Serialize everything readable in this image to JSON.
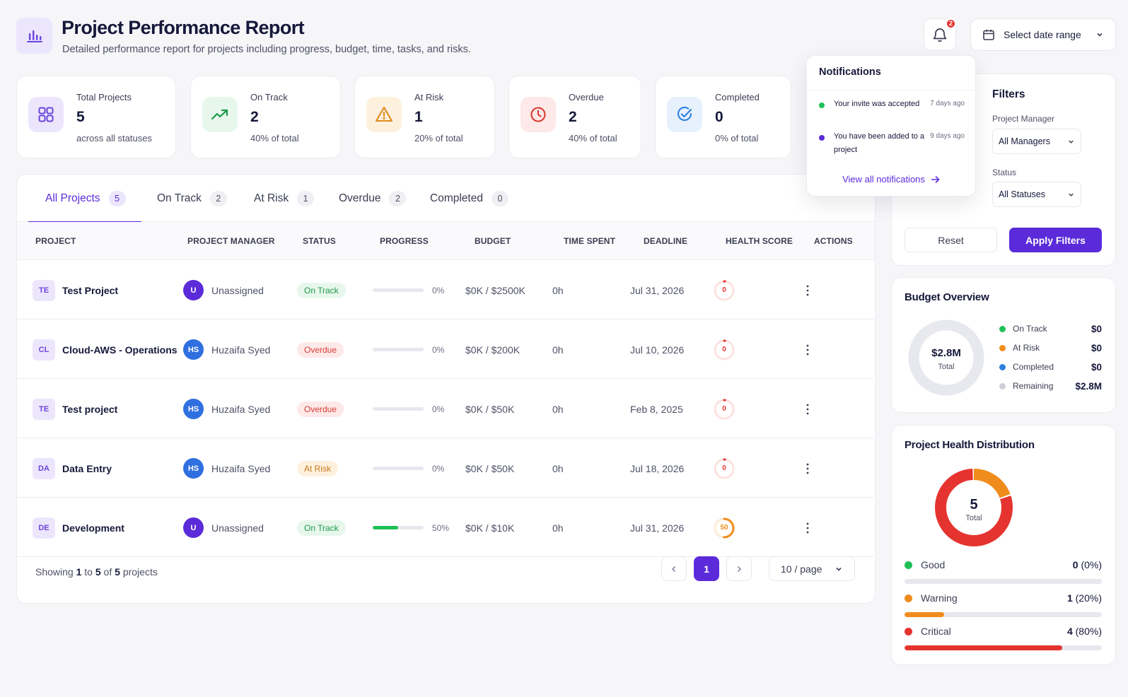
{
  "header": {
    "title": "Project Performance Report",
    "subtitle": "Detailed performance report for projects including progress, budget, time, tasks, and risks.",
    "notification_count": "2",
    "date_range_label": "Select date range"
  },
  "stats": [
    {
      "label": "Total Projects",
      "value": "5",
      "sub": "across all statuses",
      "icon": "grid-icon",
      "color": "#6b45d9"
    },
    {
      "label": "On Track",
      "value": "2",
      "sub": "40% of total",
      "icon": "trending-up-icon",
      "color": "#1f9a4a"
    },
    {
      "label": "At Risk",
      "value": "1",
      "sub": "20% of total",
      "icon": "warning-icon",
      "color": "#e08a1e"
    },
    {
      "label": "Overdue",
      "value": "2",
      "sub": "40% of total",
      "icon": "clock-icon",
      "color": "#d93c36"
    },
    {
      "label": "Completed",
      "value": "0",
      "sub": "0% of total",
      "icon": "check-circle-icon",
      "color": "#2f7fe0"
    }
  ],
  "tabs": [
    {
      "label": "All Projects",
      "count": "5"
    },
    {
      "label": "On Track",
      "count": "2"
    },
    {
      "label": "At Risk",
      "count": "1"
    },
    {
      "label": "Overdue",
      "count": "2"
    },
    {
      "label": "Completed",
      "count": "0"
    }
  ],
  "columns": [
    "PROJECT",
    "PROJECT MANAGER",
    "STATUS",
    "PROGRESS",
    "BUDGET",
    "TIME SPENT",
    "DEADLINE",
    "HEALTH SCORE",
    "ACTIONS"
  ],
  "rows": [
    {
      "initials": "TE",
      "name": "Test Project",
      "manager_initials": "U",
      "manager": "Unassigned",
      "manager_color": "#5b2bd9",
      "status": "On Track",
      "progress": "0%",
      "progress_value": 0,
      "budget": "$0K / $2500K",
      "time": "0h",
      "deadline": "Jul 31, 2026",
      "health": "0",
      "health_value": 0
    },
    {
      "initials": "CL",
      "name": "Cloud-AWS - Operations",
      "manager_initials": "HS",
      "manager": "Huzaifa Syed",
      "manager_color": "#2f6fe0",
      "status": "Overdue",
      "progress": "0%",
      "progress_value": 0,
      "budget": "$0K / $200K",
      "time": "0h",
      "deadline": "Jul 10, 2026",
      "health": "0",
      "health_value": 0
    },
    {
      "initials": "TE",
      "name": "Test project",
      "manager_initials": "HS",
      "manager": "Huzaifa Syed",
      "manager_color": "#2f6fe0",
      "status": "Overdue",
      "progress": "0%",
      "progress_value": 0,
      "budget": "$0K / $50K",
      "time": "0h",
      "deadline": "Feb 8, 2025",
      "health": "0",
      "health_value": 0
    },
    {
      "initials": "DA",
      "name": "Data Entry",
      "manager_initials": "HS",
      "manager": "Huzaifa Syed",
      "manager_color": "#2f6fe0",
      "status": "At Risk",
      "progress": "0%",
      "progress_value": 0,
      "budget": "$0K / $50K",
      "time": "0h",
      "deadline": "Jul 18, 2026",
      "health": "0",
      "health_value": 0
    },
    {
      "initials": "DE",
      "name": "Development",
      "manager_initials": "U",
      "manager": "Unassigned",
      "manager_color": "#5b2bd9",
      "status": "On Track",
      "progress": "50%",
      "progress_value": 50,
      "budget": "$0K / $10K",
      "time": "0h",
      "deadline": "Jul 31, 2026",
      "health": "50",
      "health_value": 50
    }
  ],
  "footer": {
    "showing": "Showing",
    "from": "1",
    "to_word": "to",
    "to": "5",
    "of_word": "of",
    "total": "5",
    "suffix": "projects",
    "current_page": "1",
    "per_page": "10 / page"
  },
  "notifications": {
    "title": "Notifications",
    "items": [
      {
        "text": "Your invite was accepted",
        "time": "7 days ago",
        "color": "#1fc157"
      },
      {
        "text": "You have been added to a project",
        "time": "9 days ago",
        "color": "#5b2bd9"
      }
    ],
    "view_all": "View all notifications"
  },
  "filters": {
    "title": "Filters",
    "manager_label": "Project Manager",
    "manager_value": "All Managers",
    "status_label": "Status",
    "status_value": "All Statuses",
    "reset": "Reset",
    "apply": "Apply Filters"
  },
  "budget": {
    "title": "Budget Overview",
    "total": "$2.8M",
    "total_label": "Total",
    "items": [
      {
        "label": "On Track",
        "value": "$0",
        "color": "#1fc157"
      },
      {
        "label": "At Risk",
        "value": "$0",
        "color": "#f08c1c"
      },
      {
        "label": "Completed",
        "value": "$0",
        "color": "#2f7fe0"
      },
      {
        "label": "Remaining",
        "value": "$2.8M",
        "color": "#cfd0d8"
      }
    ]
  },
  "health_distribution": {
    "title": "Project Health Distribution",
    "total": "5",
    "total_label": "Total",
    "items": [
      {
        "label": "Good",
        "count": "0",
        "pct": "(0%)",
        "value": 0,
        "color": "#1fc157"
      },
      {
        "label": "Warning",
        "count": "1",
        "pct": "(20%)",
        "value": 20,
        "color": "#f08c1c"
      },
      {
        "label": "Critical",
        "count": "4",
        "pct": "(80%)",
        "value": 80,
        "color": "#e5332f"
      }
    ]
  }
}
